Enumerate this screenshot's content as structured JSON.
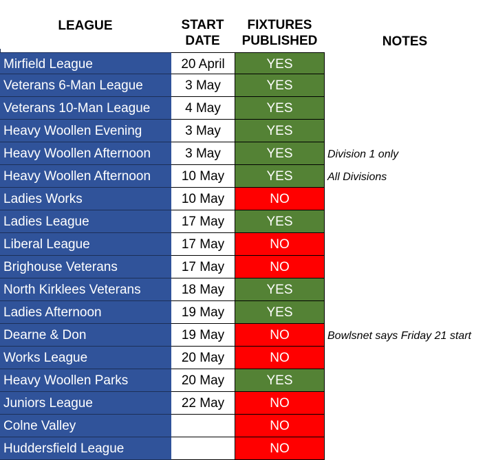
{
  "headers": {
    "league": "LEAGUE",
    "start_line1": "START",
    "start_line2": "DATE",
    "fixtures_line1": "FIXTURES",
    "fixtures_line2": "PUBLISHED",
    "notes": "NOTES"
  },
  "colors": {
    "league_cell": "#30539a",
    "yes_cell": "#548235",
    "no_cell": "#ff0000"
  },
  "rows": [
    {
      "league": "Mirfield League",
      "start": "20 April",
      "fixtures": "YES",
      "note": ""
    },
    {
      "league": "Veterans 6-Man League",
      "start": "3 May",
      "fixtures": "YES",
      "note": ""
    },
    {
      "league": "Veterans 10-Man League",
      "start": "4 May",
      "fixtures": "YES",
      "note": ""
    },
    {
      "league": "Heavy Woollen Evening",
      "start": "3 May",
      "fixtures": "YES",
      "note": ""
    },
    {
      "league": "Heavy Woollen Afternoon",
      "start": "3 May",
      "fixtures": "YES",
      "note": "Division 1 only"
    },
    {
      "league": "Heavy Woollen Afternoon",
      "start": "10 May",
      "fixtures": "YES",
      "note": "All Divisions"
    },
    {
      "league": "Ladies Works",
      "start": "10 May",
      "fixtures": "NO",
      "note": ""
    },
    {
      "league": "Ladies League",
      "start": "17 May",
      "fixtures": "YES",
      "note": ""
    },
    {
      "league": "Liberal League",
      "start": "17 May",
      "fixtures": "NO",
      "note": ""
    },
    {
      "league": "Brighouse Veterans",
      "start": "17 May",
      "fixtures": "NO",
      "note": ""
    },
    {
      "league": "North Kirklees Veterans",
      "start": "18 May",
      "fixtures": "YES",
      "note": ""
    },
    {
      "league": "Ladies Afternoon",
      "start": "19 May",
      "fixtures": "YES",
      "note": ""
    },
    {
      "league": "Dearne & Don",
      "start": "19 May",
      "fixtures": "NO",
      "note": "Bowlsnet says Friday 21 start"
    },
    {
      "league": "Works League",
      "start": "20 May",
      "fixtures": "NO",
      "note": ""
    },
    {
      "league": "Heavy Woollen Parks",
      "start": "20 May",
      "fixtures": "YES",
      "note": ""
    },
    {
      "league": "Juniors League",
      "start": "22 May",
      "fixtures": "NO",
      "note": ""
    },
    {
      "league": "Colne Valley",
      "start": "",
      "fixtures": "NO",
      "note": ""
    },
    {
      "league": "Huddersfield League",
      "start": "",
      "fixtures": "NO",
      "note": ""
    }
  ]
}
